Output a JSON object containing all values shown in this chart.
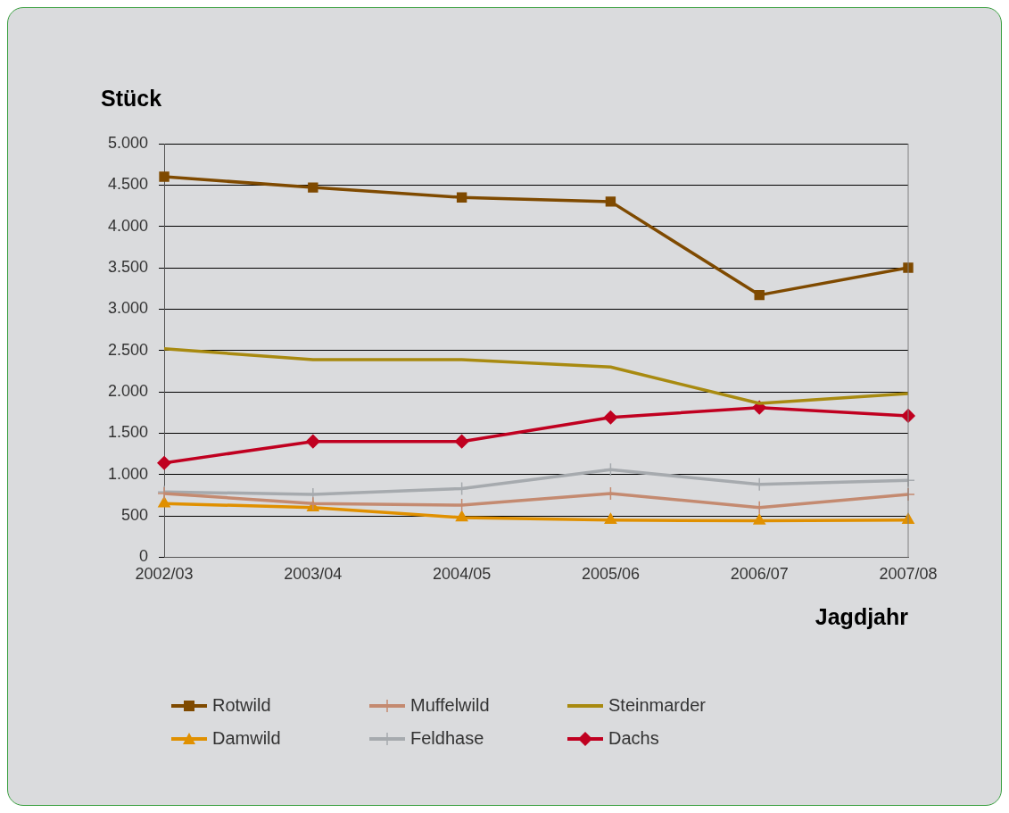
{
  "chart_data": {
    "type": "line",
    "ylabel": "Stück",
    "xlabel": "Jagdjahr",
    "categories": [
      "2002/03",
      "2003/04",
      "2004/05",
      "2005/06",
      "2006/07",
      "2007/08"
    ],
    "ylim": [
      0,
      5000
    ],
    "yticks": [
      0,
      {
        "value": 500,
        "label": "500"
      },
      {
        "value": 1000,
        "label": "1.000"
      },
      {
        "value": 1500,
        "label": "1.500"
      },
      {
        "value": 2000,
        "label": "2.000"
      },
      {
        "value": 2500,
        "label": "2.500"
      },
      {
        "value": 3000,
        "label": "3.000"
      },
      {
        "value": 3500,
        "label": "3.500"
      },
      {
        "value": 4000,
        "label": "4.000"
      },
      {
        "value": 4500,
        "label": "4.500"
      },
      {
        "value": 5000,
        "label": "5.000"
      }
    ],
    "grid": "y",
    "legend": "bottom",
    "line_style": "solid",
    "series": [
      {
        "name": "Rotwild",
        "color": "#7f4a00",
        "marker": "square",
        "values": [
          4600,
          4470,
          4350,
          4300,
          3170,
          3500
        ]
      },
      {
        "name": "Muffelwild",
        "color": "#c48a70",
        "marker": "cross",
        "values": [
          770,
          650,
          630,
          770,
          600,
          760
        ]
      },
      {
        "name": "Steinmarder",
        "color": "#a88a10",
        "marker": "none",
        "values": [
          2520,
          2390,
          2390,
          2300,
          1860,
          1980
        ]
      },
      {
        "name": "Damwild",
        "color": "#e09000",
        "marker": "triangle",
        "values": [
          650,
          600,
          480,
          450,
          440,
          450
        ]
      },
      {
        "name": "Feldhase",
        "color": "#a6aaae",
        "marker": "cross",
        "values": [
          790,
          760,
          830,
          1060,
          880,
          930
        ]
      },
      {
        "name": "Dachs",
        "color": "#c00020",
        "marker": "diamond",
        "values": [
          1140,
          1400,
          1400,
          1690,
          1810,
          1710
        ]
      }
    ]
  }
}
